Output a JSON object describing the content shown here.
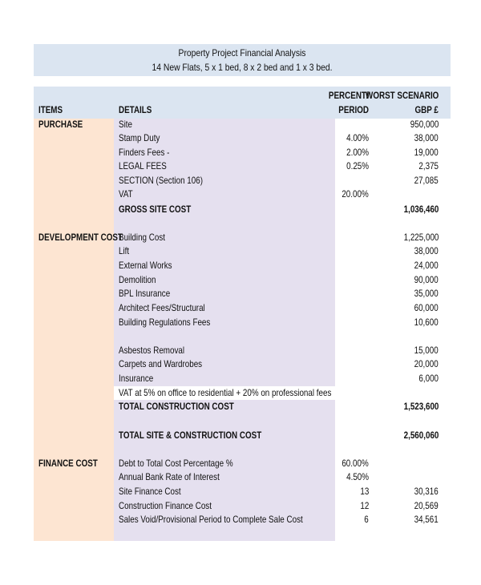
{
  "header": {
    "title": "Property Project Financial Analysis",
    "subtitle": "14 New Flats, 5 x 1 bed, 8 x 2 bed and 1 x 3 bed."
  },
  "table": {
    "columns": {
      "items": "ITEMS",
      "details": "DETAILS",
      "percent": [
        "PERCENT/",
        "PERIOD"
      ],
      "gbp": [
        "WORST SCENARIO",
        "GBP £"
      ]
    },
    "rows": [
      [
        "PURCHASE",
        "Site",
        null,
        "950,000"
      ],
      [
        null,
        "Stamp Duty",
        "4.00%",
        "38,000"
      ],
      [
        null,
        "Finders Fees -",
        "2.00%",
        "19,000"
      ],
      [
        null,
        "LEGAL FEES",
        "0.25%",
        "2,375"
      ],
      [
        null,
        "SECTION (Section 106)",
        null,
        "27,085"
      ],
      [
        null,
        "VAT",
        "20.00%",
        null
      ],
      [
        null,
        "GROSS SITE COST",
        null,
        "1,036,460"
      ],
      [
        "DEVELOPMENT COST",
        "Building Cost",
        null,
        "1,225,000"
      ],
      [
        null,
        "Lift",
        null,
        "38,000"
      ],
      [
        null,
        "External Works",
        null,
        "24,000"
      ],
      [
        null,
        "Demolition",
        null,
        "90,000"
      ],
      [
        null,
        "BPL Insurance",
        null,
        "35,000"
      ],
      [
        null,
        "Architect Fees/Structural",
        null,
        "60,000"
      ],
      [
        null,
        "Building Regulations Fees",
        null,
        "10,600"
      ],
      [
        null,
        "Asbestos Removal",
        null,
        "15,000"
      ],
      [
        null,
        "Carpets and Wardrobes",
        null,
        "20,000"
      ],
      [
        null,
        "Insurance",
        null,
        "6,000"
      ],
      [
        null,
        "VAT at 5% on office to residential + 20% on professional fees",
        null,
        null
      ],
      [
        null,
        "TOTAL CONSTRUCTION COST",
        null,
        "1,523,600"
      ],
      [
        null,
        "TOTAL SITE & CONSTRUCTION COST",
        null,
        "2,560,060"
      ],
      [
        "FINANCE COST",
        "Debt to Total Cost Percentage %",
        "60.00%",
        null
      ],
      [
        null,
        "Annual Bank Rate of Interest",
        "4.50%",
        null
      ],
      [
        null,
        "Site Finance Cost",
        "13",
        "30,316"
      ],
      [
        null,
        "Construction Finance Cost",
        "12",
        "20,569"
      ],
      [
        null,
        "Sales Void/Provisional Period to Complete Sale Cost",
        "6",
        "34,561"
      ]
    ]
  }
}
